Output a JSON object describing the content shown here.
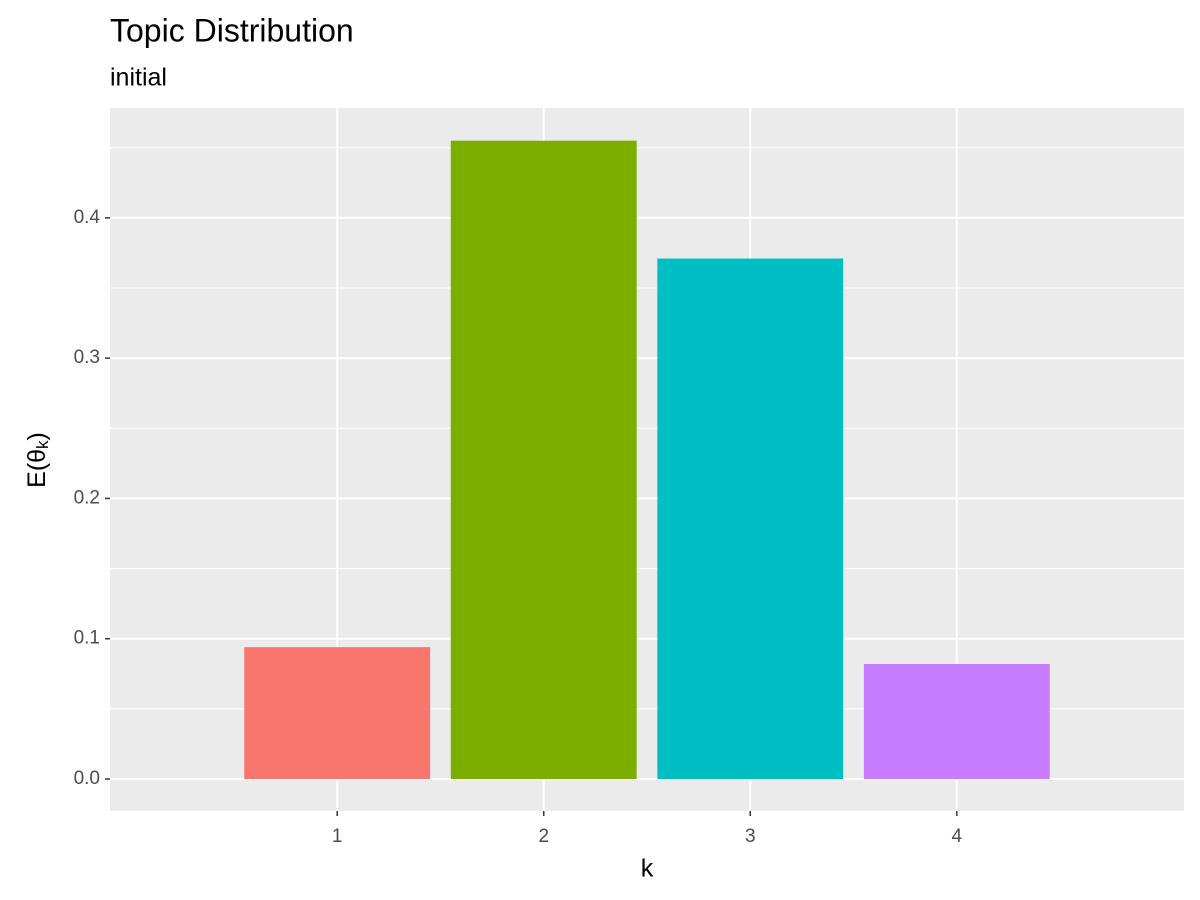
{
  "chart_data": {
    "type": "bar",
    "title": "Topic Distribution",
    "subtitle": "initial",
    "x_label": "k",
    "y_label": {
      "main": "E(θ",
      "sub": "k",
      "close": ")"
    },
    "categories": [
      "1",
      "2",
      "3",
      "4"
    ],
    "values": [
      0.094,
      0.455,
      0.371,
      0.082
    ],
    "colors": [
      "#F8766D",
      "#7CAE00",
      "#00BFC4",
      "#C77CFF"
    ],
    "ylim": [
      -0.0228,
      0.4783
    ],
    "yticks": [
      {
        "value": 0,
        "label": "0.0"
      },
      0.1,
      0.2,
      0.3,
      0.4
    ],
    "grid": true
  }
}
